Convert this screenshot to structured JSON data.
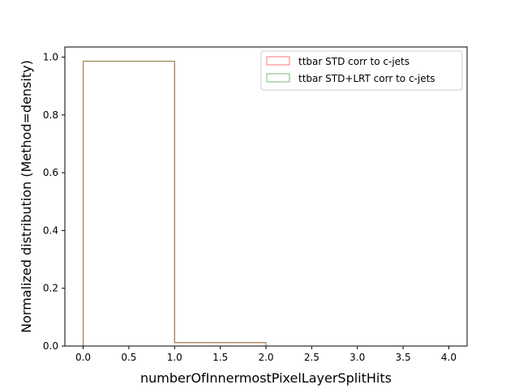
{
  "chart_data": {
    "type": "histogram-step",
    "xlabel": "numberOfInnermostPixelLayerSplitHits",
    "ylabel": "Normalized distribution (Method=density)",
    "xlim": [
      -0.2,
      4.2
    ],
    "ylim": [
      0,
      1.035
    ],
    "xticks": [
      0.0,
      0.5,
      1.0,
      1.5,
      2.0,
      2.5,
      3.0,
      3.5,
      4.0
    ],
    "xtick_labels": [
      "0.0",
      "0.5",
      "1.0",
      "1.5",
      "2.0",
      "2.5",
      "3.0",
      "3.5",
      "4.0"
    ],
    "yticks": [
      0.0,
      0.2,
      0.4,
      0.6,
      0.8,
      1.0
    ],
    "ytick_labels": [
      "0.0",
      "0.2",
      "0.4",
      "0.6",
      "0.8",
      "1.0"
    ],
    "bin_edges": [
      0,
      1,
      2
    ],
    "series": [
      {
        "name": "ttbar STD corr to c-jets",
        "values": [
          0.986,
          0.012
        ],
        "color": "#ff7777"
      },
      {
        "name": "ttbar STD+LRT corr to c-jets",
        "values": [
          0.986,
          0.012
        ],
        "color": "#77bb77"
      }
    ],
    "overlap_color": "#8b7a3a",
    "legend_position": "upper-right",
    "grid": false
  }
}
